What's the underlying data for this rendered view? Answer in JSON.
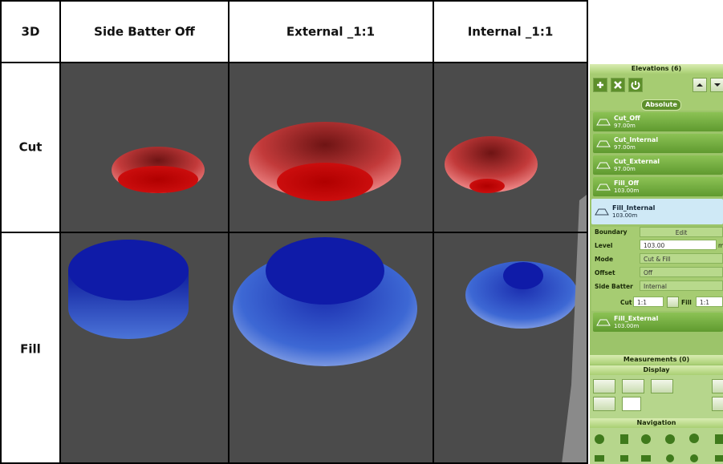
{
  "table": {
    "header": [
      "3D",
      "Side Batter Off",
      "External _1:1",
      "Internal _1:1"
    ],
    "rows": [
      {
        "label": "Cut"
      },
      {
        "label": "Fill"
      }
    ]
  },
  "panel": {
    "title": "Elevations (6)",
    "mode_button": "Absolute",
    "items": [
      {
        "name": "Cut_Off",
        "level": "97.00m"
      },
      {
        "name": "Cut_Internal",
        "level": "97.00m"
      },
      {
        "name": "Cut_External",
        "level": "97.00m"
      },
      {
        "name": "Fill_Off",
        "level": "103.00m"
      },
      {
        "name": "Fill_Internal",
        "level": "103.00m"
      },
      {
        "name": "Fill_External",
        "level": "103.00m"
      }
    ],
    "properties": {
      "boundary": {
        "label": "Boundary",
        "button": "Edit"
      },
      "level": {
        "label": "Level",
        "value": "103.00",
        "unit": "m"
      },
      "mode": {
        "label": "Mode",
        "value": "Cut & Fill"
      },
      "offset": {
        "label": "Offset",
        "value": "Off"
      },
      "side_batter": {
        "label": "Side Batter",
        "value": "Internal"
      },
      "cut": {
        "label": "Cut",
        "value": "1:1"
      },
      "fill": {
        "label": "Fill",
        "value": "1:1"
      }
    },
    "measurements": "Measurements (0)",
    "display": "Display",
    "navigation": "Navigation"
  }
}
